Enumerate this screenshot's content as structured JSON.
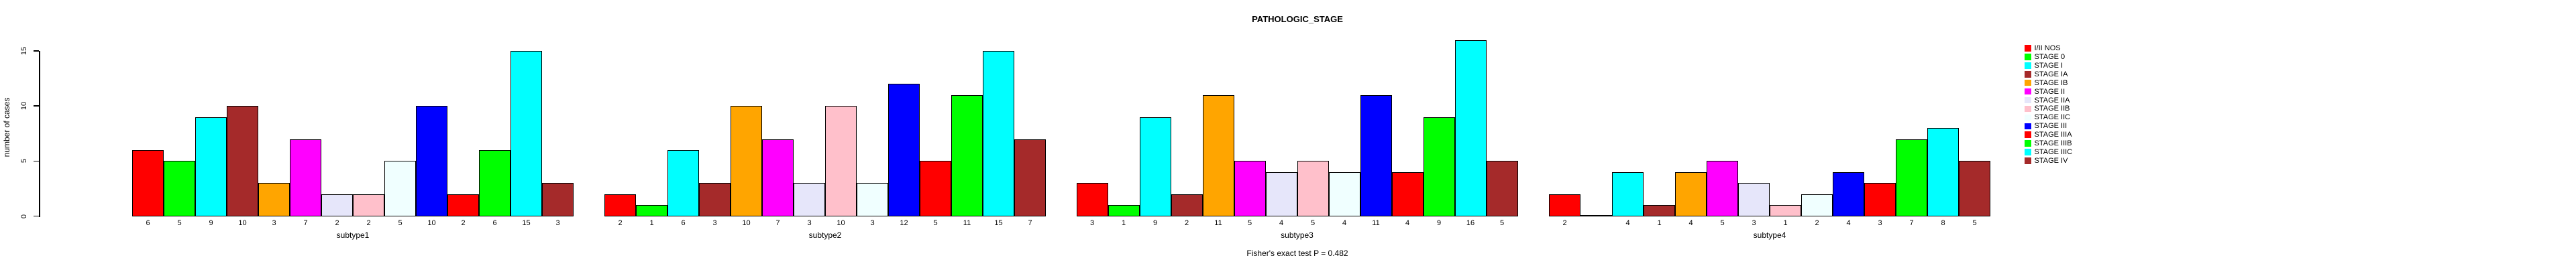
{
  "chart_data": {
    "type": "bar",
    "title": "PATHOLOGIC_STAGE",
    "ylabel": "number of cases",
    "footnote": "Fisher's exact test P = 0.482",
    "yticks": [
      0,
      5,
      10,
      15
    ],
    "ylim": [
      0,
      16
    ],
    "grid": false,
    "legend_position": "right",
    "categories": [
      "I/II NOS",
      "STAGE 0",
      "STAGE I",
      "STAGE IA",
      "STAGE IB",
      "STAGE II",
      "STAGE IIA",
      "STAGE IIB",
      "STAGE IIC",
      "STAGE III",
      "STAGE IIIA",
      "STAGE IIIB",
      "STAGE IIIC",
      "STAGE IV"
    ],
    "palette": [
      "#FF0000",
      "#00FF00",
      "#00FFFF",
      "#A52A2A",
      "#FFA500",
      "#FF00FF",
      "#E6E6FA",
      "#FFC0CB",
      "#F0FFFF",
      "#0000FF",
      "#FF0000",
      "#00FF00",
      "#00FFFF",
      "#A52A2A"
    ],
    "groups": [
      {
        "label": "subtype1",
        "values": [
          6,
          5,
          9,
          10,
          3,
          7,
          2,
          2,
          5,
          10,
          2,
          6,
          15,
          3
        ]
      },
      {
        "label": "subtype2",
        "values": [
          2,
          1,
          6,
          3,
          10,
          7,
          3,
          10,
          3,
          12,
          5,
          11,
          15,
          7
        ]
      },
      {
        "label": "subtype3",
        "values": [
          3,
          1,
          9,
          2,
          11,
          5,
          4,
          5,
          4,
          11,
          4,
          9,
          16,
          5
        ]
      },
      {
        "label": "subtype4",
        "values": [
          2,
          0,
          4,
          1,
          4,
          5,
          3,
          1,
          2,
          4,
          3,
          7,
          8,
          5
        ]
      }
    ]
  }
}
